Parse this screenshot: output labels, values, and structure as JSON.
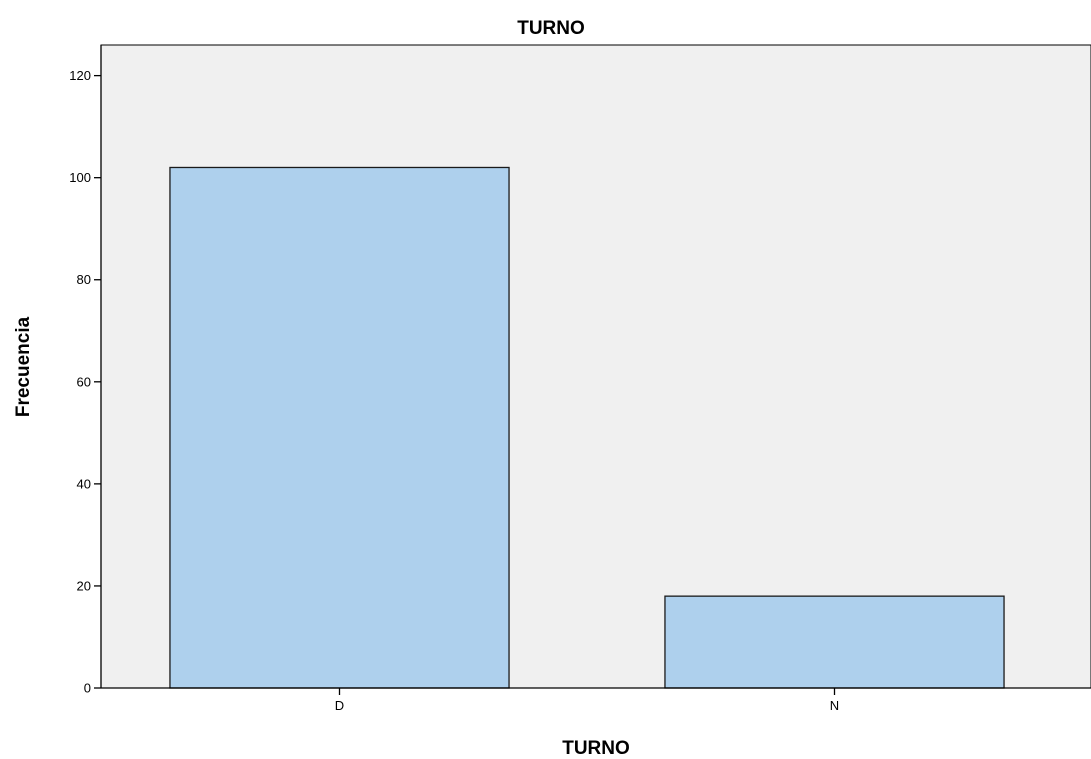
{
  "colors": {
    "plot_background": "#f0f0f0",
    "bar_fill": "#aed0ed",
    "bar_stroke": "#1a1a1a",
    "axis": "#000000"
  },
  "chart_data": {
    "type": "bar",
    "title": "TURNO",
    "xlabel": "TURNO",
    "ylabel": "Frecuencia",
    "categories": [
      "D",
      "N"
    ],
    "values": [
      102,
      18
    ],
    "ylim": [
      0,
      126
    ],
    "yticks": [
      0,
      20,
      40,
      60,
      80,
      100,
      120
    ],
    "grid": false,
    "legend": "none"
  }
}
